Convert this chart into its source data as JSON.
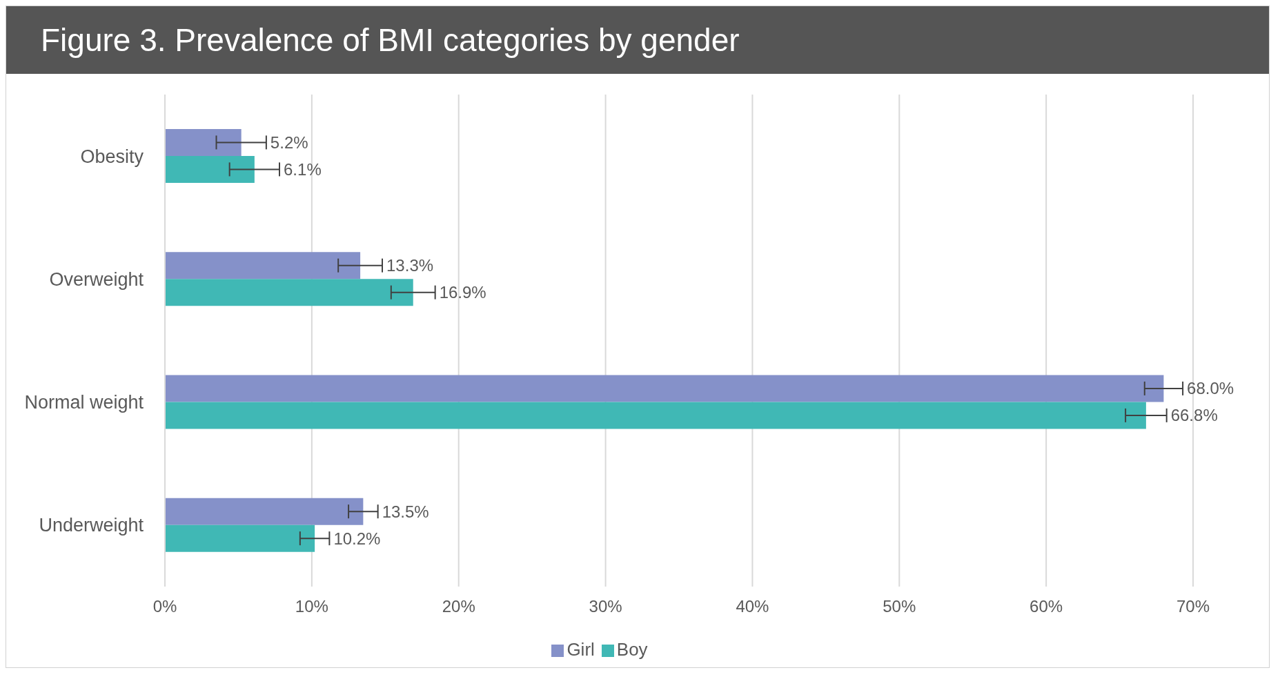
{
  "chart_data": {
    "type": "bar",
    "orientation": "horizontal",
    "title": "Figure 3. Prevalence of BMI categories by gender",
    "categories": [
      "Obesity",
      "Overweight",
      "Normal weight",
      "Underweight"
    ],
    "series": [
      {
        "name": "Girl",
        "color": "#8591c9",
        "values": [
          5.2,
          13.3,
          68.0,
          13.5
        ],
        "errors": [
          1.7,
          1.5,
          1.3,
          1.0
        ],
        "value_labels": [
          "5.2%",
          "13.3%",
          "68.0%",
          "13.5%"
        ]
      },
      {
        "name": "Boy",
        "color": "#40b8b5",
        "values": [
          6.1,
          16.9,
          66.8,
          10.2
        ],
        "errors": [
          1.7,
          1.5,
          1.4,
          1.0
        ],
        "value_labels": [
          "6.1%",
          "16.9%",
          "66.8%",
          "10.2%"
        ]
      }
    ],
    "xlim": [
      0,
      70
    ],
    "xticks": [
      {
        "value": 0,
        "label": "0%"
      },
      {
        "value": 10,
        "label": "10%"
      },
      {
        "value": 20,
        "label": "20%"
      },
      {
        "value": 30,
        "label": "30%"
      },
      {
        "value": 40,
        "label": "40%"
      },
      {
        "value": 50,
        "label": "50%"
      },
      {
        "value": 60,
        "label": "60%"
      },
      {
        "value": 70,
        "label": "70%"
      }
    ],
    "grid": "x",
    "legend": "bottom"
  }
}
